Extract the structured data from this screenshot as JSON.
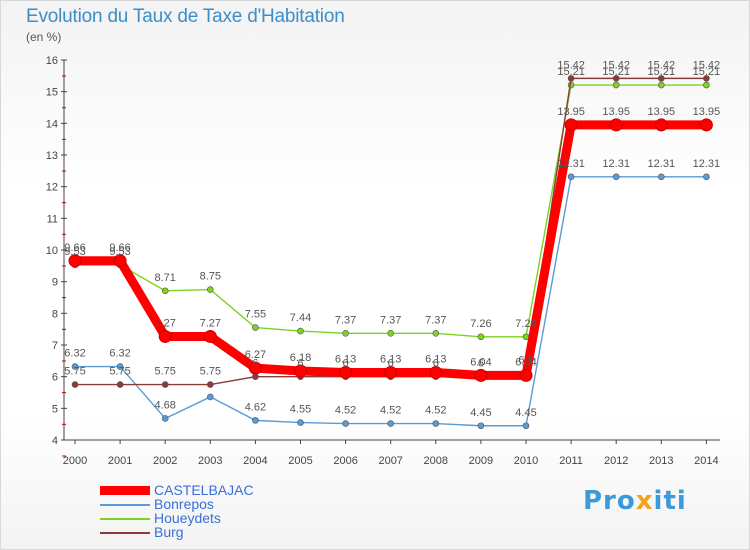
{
  "title": "Evolution du Taux de Taxe d'Habitation",
  "subtitle": "(en %)",
  "logo": {
    "prefix": "Pro",
    "mid": "x",
    "suffix": "iti"
  },
  "chart_data": {
    "type": "line",
    "x": [
      "2000",
      "2001",
      "2002",
      "2003",
      "2004",
      "2005",
      "2006",
      "2007",
      "2008",
      "2009",
      "2010",
      "2011",
      "2012",
      "2013",
      "2014"
    ],
    "ylim": [
      4,
      16
    ],
    "yticks": [
      "4",
      "5",
      "6",
      "7",
      "8",
      "9",
      "10",
      "11",
      "12",
      "13",
      "14",
      "15",
      "16"
    ],
    "grid": false,
    "legend": "bottom-left",
    "series": [
      {
        "name": "CASTELBAJAC",
        "color": "#ff0000",
        "values": [
          9.66,
          9.66,
          7.27,
          7.27,
          6.27,
          6.18,
          6.13,
          6.13,
          6.13,
          6.04,
          6.04,
          13.95,
          13.95,
          13.95,
          13.95
        ],
        "labels": [
          "9.66",
          "9.66",
          "7.27",
          "7.27",
          "6.27",
          "6.18",
          "6.13",
          "6.13",
          "6.13",
          "6.04",
          "6.04",
          "13.95",
          "13.95",
          "13.95",
          "13.95"
        ]
      },
      {
        "name": "Bonrepos",
        "color": "#5b9bd5",
        "values": [
          6.32,
          6.32,
          4.68,
          5.36,
          4.62,
          4.55,
          4.52,
          4.52,
          4.52,
          4.45,
          4.45,
          12.31,
          12.31,
          12.31,
          12.31
        ],
        "labels": [
          "6.32",
          "6.32",
          "4.68",
          "",
          "4.62",
          "4.55",
          "4.52",
          "4.52",
          "4.52",
          "4.45",
          "4.45",
          "12.31",
          "12.31",
          "12.31",
          "12.31"
        ]
      },
      {
        "name": "Houeydets",
        "color": "#7ed321",
        "values": [
          9.53,
          9.53,
          8.71,
          8.75,
          7.55,
          7.44,
          7.37,
          7.37,
          7.37,
          7.26,
          7.26,
          15.21,
          15.21,
          15.21,
          15.21
        ],
        "labels": [
          "9.53",
          "9.53",
          "8.71",
          "8.75",
          "7.55",
          "7.44",
          "7.37",
          "7.37",
          "7.37",
          "7.26",
          "7.26",
          "15.21",
          "15.21",
          "15.21",
          "15.21"
        ]
      },
      {
        "name": "Burg",
        "color": "#8b3a3a",
        "values": [
          5.75,
          5.75,
          5.75,
          5.75,
          6.0,
          6.0,
          6.0,
          6.0,
          6.0,
          6.0,
          6.1,
          15.42,
          15.42,
          15.42,
          15.42
        ],
        "labels": [
          "5.75",
          "5.75",
          "5.75",
          "5.75",
          "6",
          "6",
          "6",
          "6",
          "6",
          "6",
          "6.1",
          "15.42",
          "15.42",
          "15.42",
          "15.42"
        ]
      }
    ]
  }
}
